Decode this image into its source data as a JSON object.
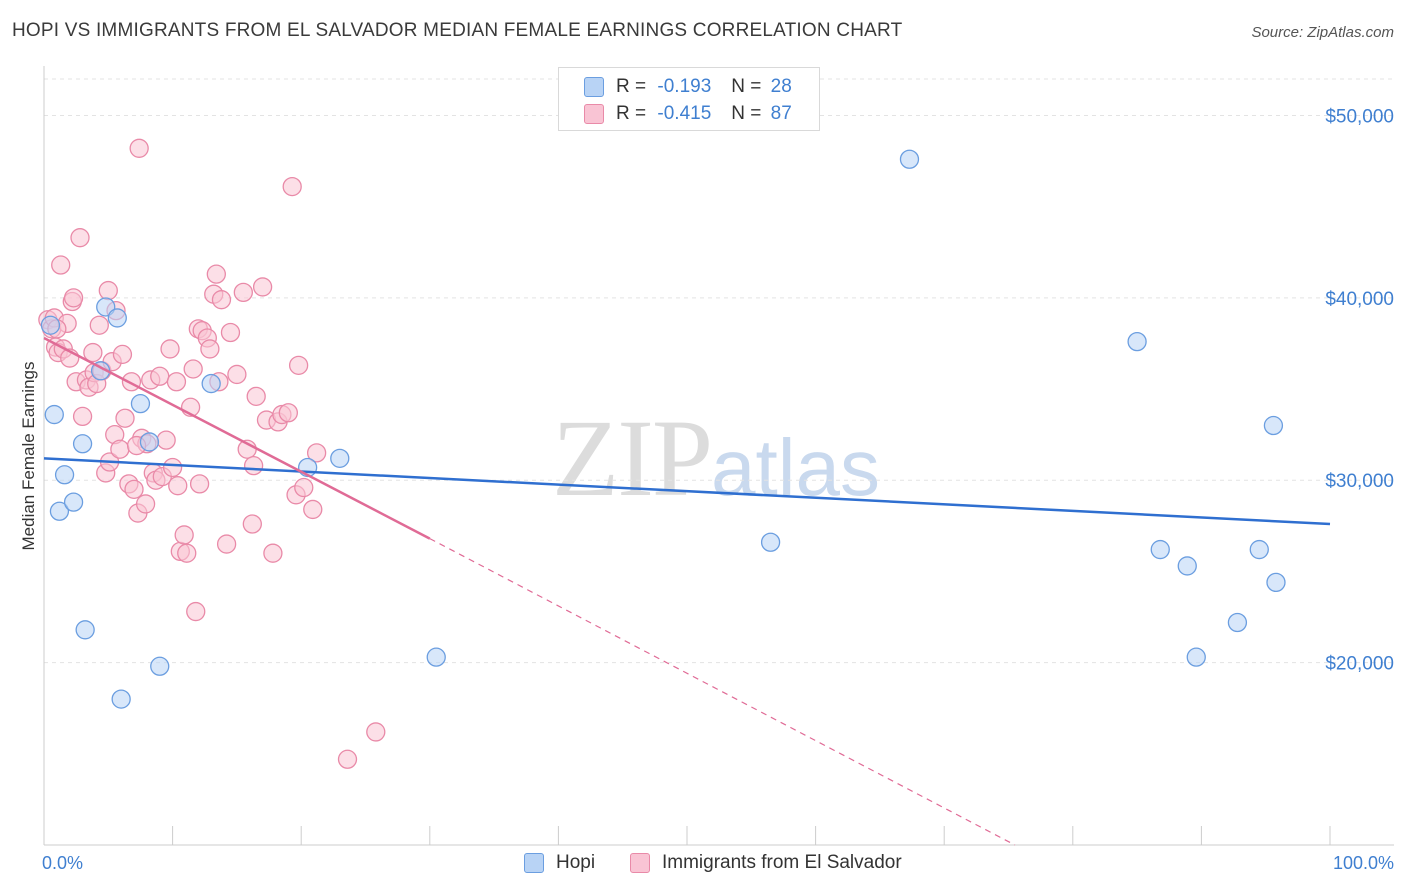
{
  "header": {
    "title": "HOPI VS IMMIGRANTS FROM EL SALVADOR MEDIAN FEMALE EARNINGS CORRELATION CHART",
    "source": "Source: ZipAtlas.com"
  },
  "watermark": {
    "zip": "ZIP",
    "atlas": "atlas"
  },
  "legend": {
    "rows": [
      {
        "r_label": "R =",
        "r_value": "-0.193",
        "n_label": "N =",
        "n_value": "28"
      },
      {
        "r_label": "R =",
        "r_value": "-0.415",
        "n_label": "N =",
        "n_value": "87"
      }
    ]
  },
  "colors": {
    "hopi_fill": "#b8d3f5",
    "hopi_stroke": "#6b9ee0",
    "hopi_line": "#2f6fd0",
    "salv_fill": "#f9c4d4",
    "salv_stroke": "#e98aa8",
    "salv_line": "#e06b96",
    "grid": "#e3e3e3",
    "tick": "#3f7fd0"
  },
  "chart_data": {
    "type": "scatter",
    "title": "HOPI VS IMMIGRANTS FROM EL SALVADOR MEDIAN FEMALE EARNINGS CORRELATION CHART",
    "xlabel": "",
    "ylabel": "Median Female Earnings",
    "xlim": [
      0,
      100
    ],
    "ylim": [
      10000,
      52000
    ],
    "x_tick_labels": [
      "0.0%",
      "100.0%"
    ],
    "y_ticks": [
      20000,
      30000,
      40000,
      50000
    ],
    "y_tick_labels": [
      "$20,000",
      "$30,000",
      "$40,000",
      "$50,000"
    ],
    "legend_position": "bottom",
    "series": [
      {
        "name": "Hopi",
        "trend": {
          "x": [
            0,
            100
          ],
          "y": [
            31200,
            27600
          ],
          "style": "solid"
        },
        "points": [
          [
            0.5,
            38500
          ],
          [
            0.8,
            33600
          ],
          [
            1.2,
            28300
          ],
          [
            1.6,
            30300
          ],
          [
            2.3,
            28800
          ],
          [
            3.0,
            32000
          ],
          [
            3.2,
            21800
          ],
          [
            4.4,
            36000
          ],
          [
            4.8,
            39500
          ],
          [
            5.7,
            38900
          ],
          [
            6.0,
            18000
          ],
          [
            7.5,
            34200
          ],
          [
            8.2,
            32100
          ],
          [
            9.0,
            19800
          ],
          [
            13.0,
            35300
          ],
          [
            20.5,
            30700
          ],
          [
            23.0,
            31200
          ],
          [
            30.5,
            20300
          ],
          [
            56.5,
            26600
          ],
          [
            67.3,
            47600
          ],
          [
            85.0,
            37600
          ],
          [
            86.8,
            26200
          ],
          [
            88.9,
            25300
          ],
          [
            89.6,
            20300
          ],
          [
            92.8,
            22200
          ],
          [
            94.5,
            26200
          ],
          [
            95.6,
            33000
          ],
          [
            95.8,
            24400
          ]
        ]
      },
      {
        "name": "Immigrants from El Salvador",
        "trend": {
          "x": [
            0,
            30
          ],
          "y": [
            37800,
            26800
          ],
          "style": "solid",
          "dashed_extension": {
            "x": [
              30,
              75.5
            ],
            "y": [
              26800,
              10000
            ]
          }
        },
        "points": [
          [
            0.3,
            38800
          ],
          [
            0.6,
            38300
          ],
          [
            0.8,
            38900
          ],
          [
            0.9,
            37300
          ],
          [
            1.1,
            37000
          ],
          [
            1.3,
            41800
          ],
          [
            1.5,
            37200
          ],
          [
            1.8,
            38600
          ],
          [
            2.0,
            36700
          ],
          [
            2.2,
            39800
          ],
          [
            2.3,
            40000
          ],
          [
            2.5,
            35400
          ],
          [
            2.8,
            43300
          ],
          [
            3.0,
            33500
          ],
          [
            3.3,
            35500
          ],
          [
            3.5,
            35100
          ],
          [
            3.8,
            37000
          ],
          [
            3.9,
            35900
          ],
          [
            4.1,
            35300
          ],
          [
            4.3,
            38500
          ],
          [
            4.5,
            36000
          ],
          [
            4.8,
            30400
          ],
          [
            5.0,
            40400
          ],
          [
            5.1,
            31000
          ],
          [
            5.3,
            36500
          ],
          [
            5.5,
            32500
          ],
          [
            5.6,
            39300
          ],
          [
            5.9,
            31700
          ],
          [
            6.1,
            36900
          ],
          [
            6.3,
            33400
          ],
          [
            6.6,
            29800
          ],
          [
            6.8,
            35400
          ],
          [
            7.0,
            29500
          ],
          [
            7.3,
            28200
          ],
          [
            7.4,
            48200
          ],
          [
            7.6,
            32300
          ],
          [
            7.9,
            28700
          ],
          [
            8.0,
            32000
          ],
          [
            8.3,
            35500
          ],
          [
            8.5,
            30400
          ],
          [
            8.7,
            30000
          ],
          [
            9.0,
            35700
          ],
          [
            9.2,
            30200
          ],
          [
            9.5,
            32200
          ],
          [
            9.8,
            37200
          ],
          [
            10.0,
            30700
          ],
          [
            10.3,
            35400
          ],
          [
            10.4,
            29700
          ],
          [
            10.6,
            26100
          ],
          [
            10.9,
            27000
          ],
          [
            11.1,
            26000
          ],
          [
            11.4,
            34000
          ],
          [
            11.6,
            36100
          ],
          [
            11.8,
            22800
          ],
          [
            12.0,
            38300
          ],
          [
            12.1,
            29800
          ],
          [
            12.3,
            38200
          ],
          [
            12.7,
            37800
          ],
          [
            12.9,
            37200
          ],
          [
            13.2,
            40200
          ],
          [
            13.4,
            41300
          ],
          [
            13.6,
            35400
          ],
          [
            13.8,
            39900
          ],
          [
            14.2,
            26500
          ],
          [
            14.5,
            38100
          ],
          [
            15.0,
            35800
          ],
          [
            15.5,
            40300
          ],
          [
            15.8,
            31700
          ],
          [
            16.2,
            27600
          ],
          [
            16.3,
            30800
          ],
          [
            16.5,
            34600
          ],
          [
            17.0,
            40600
          ],
          [
            17.3,
            33300
          ],
          [
            17.8,
            26000
          ],
          [
            18.2,
            33200
          ],
          [
            18.5,
            33600
          ],
          [
            19.0,
            33700
          ],
          [
            19.3,
            46100
          ],
          [
            19.6,
            29200
          ],
          [
            19.8,
            36300
          ],
          [
            20.2,
            29600
          ],
          [
            20.9,
            28400
          ],
          [
            21.2,
            31500
          ],
          [
            23.6,
            14700
          ],
          [
            25.8,
            16200
          ],
          [
            7.2,
            31900
          ],
          [
            1.0,
            38300
          ]
        ]
      }
    ]
  }
}
